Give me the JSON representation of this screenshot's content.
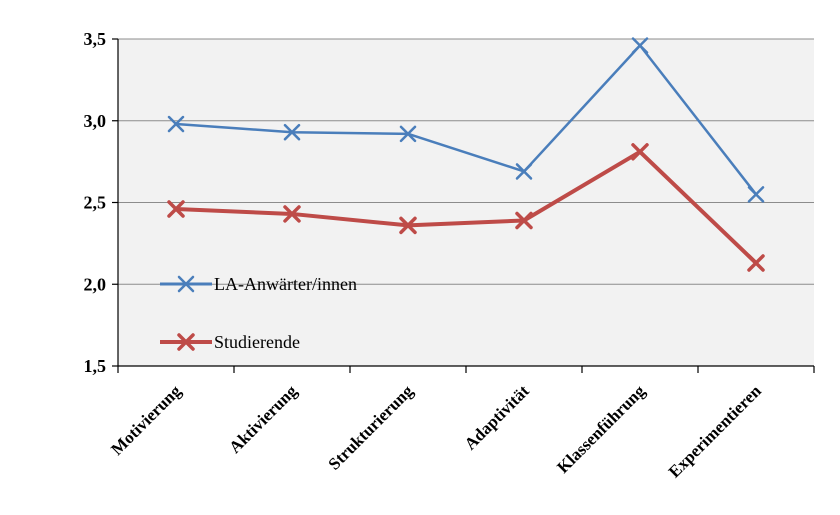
{
  "chart_data": {
    "type": "line",
    "categories": [
      "Motivierung",
      "Aktivierung",
      "Strukturierung",
      "Adaptivität",
      "Klassenführung",
      "Experimentieren"
    ],
    "y_ticks": [
      "3,5",
      "3,0",
      "2,5",
      "2,0",
      "1,5"
    ],
    "ylim": [
      1.5,
      3.5
    ],
    "grid": true,
    "legend_position": "left-inside",
    "series": [
      {
        "name": "LA-Anwärter/innen",
        "color": "#4a7ebb",
        "values": [
          2.98,
          2.93,
          2.92,
          2.69,
          3.46,
          2.55
        ]
      },
      {
        "name": "Studierende",
        "color": "#be4b48",
        "values": [
          2.46,
          2.43,
          2.36,
          2.39,
          2.81,
          2.13
        ]
      }
    ]
  }
}
